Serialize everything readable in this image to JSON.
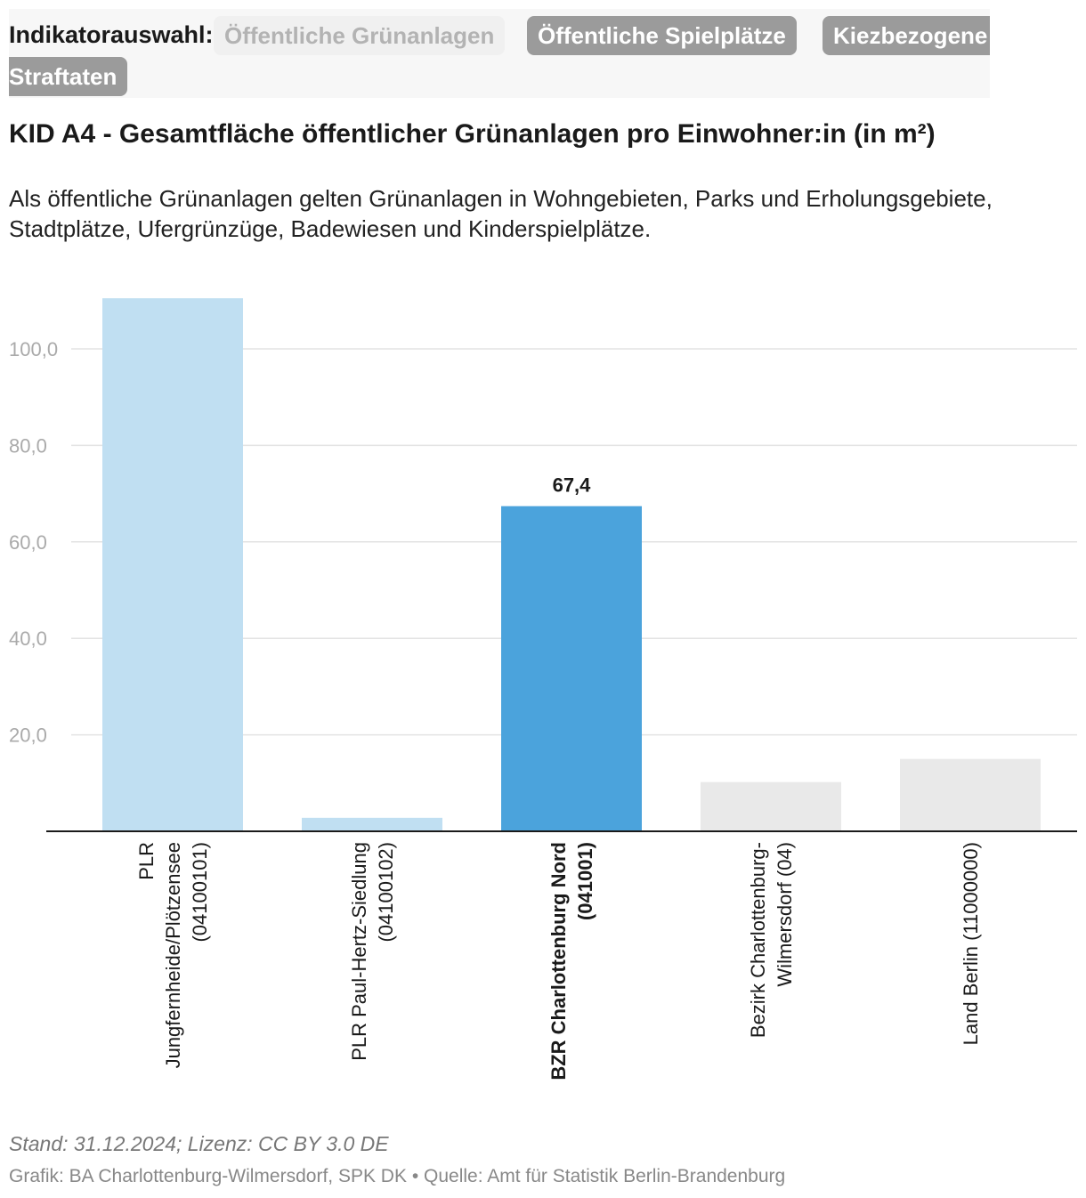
{
  "selector": {
    "label": "Indikatorauswahl:",
    "options": [
      {
        "label": "Öffentliche Grünanlagen",
        "active": true
      },
      {
        "label": "Öffentliche Spielplätze",
        "active": false
      },
      {
        "label": "Kiezbezogene",
        "active": false
      },
      {
        "label": "Straftaten",
        "active": false
      }
    ]
  },
  "header": {
    "title": "KID A4 - Gesamtfläche öffentlicher Grünanlagen pro Einwohner:in (in m²)",
    "description": "Als öffentliche Grünanlagen gelten Grünanlagen in Wohngebieten, Parks und Erholungsgebiete, Stadtplätze, Ufergrünzüge, Badewiesen und Kinderspielplätze."
  },
  "colors": {
    "highlight": "#4ba3dc",
    "planning_area": "#c0dff2",
    "comparison": "#e9e9e9",
    "grid": "#e3e3e3",
    "tick_text": "#aaaaaa"
  },
  "chart_data": {
    "type": "bar",
    "title": "KID A4 - Gesamtfläche öffentlicher Grünanlagen pro Einwohner:in (in m²)",
    "xlabel": "",
    "ylabel": "",
    "ylim": [
      0,
      111
    ],
    "yticks": [
      20,
      40,
      60,
      80,
      100
    ],
    "ytick_labels": [
      "20,0",
      "40,0",
      "60,0",
      "80,0",
      "100,0"
    ],
    "grid": true,
    "categories": [
      [
        "PLR",
        "Jungfernheide/Plötzensee",
        "(04100101)"
      ],
      [
        "PLR Paul-Hertz-Siedlung",
        "(04100102)"
      ],
      [
        "BZR Charlottenburg Nord",
        "(041001)"
      ],
      [
        "Bezirk Charlottenburg-",
        "Wilmersdorf (04)"
      ],
      [
        "Land Berlin (11000000)"
      ]
    ],
    "values": [
      110.5,
      2.8,
      67.4,
      10.2,
      15.0
    ],
    "bar_groups": [
      "planning_area",
      "planning_area",
      "highlight",
      "comparison",
      "comparison"
    ],
    "highlight_index": 2,
    "data_labels": [
      {
        "index": 2,
        "text": "67,4"
      }
    ]
  },
  "footer": {
    "stand": "Stand: 31.12.2024; Lizenz: CC BY 3.0 DE",
    "credit": "Grafik: BA Charlottenburg-Wilmersdorf, SPK DK • Quelle: Amt für Statistik Berlin-Brandenburg"
  }
}
